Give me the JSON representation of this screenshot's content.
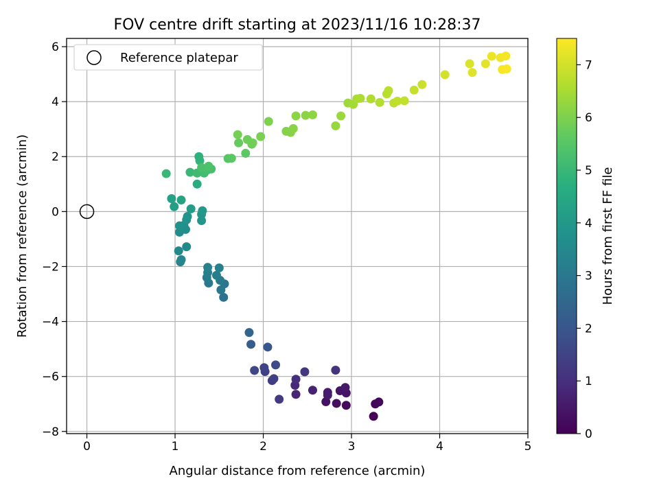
{
  "chart_data": {
    "type": "scatter",
    "title": "FOV centre drift starting at 2023/11/16 10:28:37",
    "xlabel": "Angular distance from reference (arcmin)",
    "ylabel": "Rotation from reference (arcmin)",
    "xlim": [
      -0.23,
      5.0
    ],
    "ylim": [
      -8.08,
      6.3
    ],
    "xticks": [
      0,
      1,
      2,
      3,
      4,
      5
    ],
    "yticks": [
      -8,
      -6,
      -4,
      -2,
      0,
      2,
      4,
      6
    ],
    "grid": true,
    "legend": {
      "position": "top-left",
      "entries": [
        "Reference platepar"
      ]
    },
    "reference_point": {
      "x": 0,
      "y": 0
    },
    "colorbar": {
      "label": "Hours from first FF file",
      "range": [
        0,
        7.5
      ],
      "ticks": [
        0,
        1,
        2,
        3,
        4,
        5,
        6,
        7
      ],
      "colormap": "viridis"
    },
    "points": [
      {
        "x": 3.25,
        "y": -7.45,
        "t": 0.05
      },
      {
        "x": 3.27,
        "y": -7.0,
        "t": 0.1
      },
      {
        "x": 3.31,
        "y": -6.93,
        "t": 0.15
      },
      {
        "x": 2.94,
        "y": -7.05,
        "t": 0.2
      },
      {
        "x": 2.83,
        "y": -6.98,
        "t": 0.3
      },
      {
        "x": 2.71,
        "y": -6.92,
        "t": 0.35
      },
      {
        "x": 2.94,
        "y": -6.6,
        "t": 0.4
      },
      {
        "x": 2.87,
        "y": -6.52,
        "t": 0.45
      },
      {
        "x": 2.93,
        "y": -6.4,
        "t": 0.5
      },
      {
        "x": 2.73,
        "y": -6.58,
        "t": 0.55
      },
      {
        "x": 2.73,
        "y": -6.68,
        "t": 0.6
      },
      {
        "x": 2.56,
        "y": -6.5,
        "t": 0.7
      },
      {
        "x": 2.37,
        "y": -6.65,
        "t": 0.8
      },
      {
        "x": 2.36,
        "y": -6.32,
        "t": 0.9
      },
      {
        "x": 2.37,
        "y": -6.1,
        "t": 1.0
      },
      {
        "x": 2.82,
        "y": -5.77,
        "t": 1.1
      },
      {
        "x": 2.47,
        "y": -5.83,
        "t": 1.2
      },
      {
        "x": 2.18,
        "y": -6.83,
        "t": 1.3
      },
      {
        "x": 2.1,
        "y": -6.15,
        "t": 1.35
      },
      {
        "x": 2.12,
        "y": -6.08,
        "t": 1.4
      },
      {
        "x": 2.02,
        "y": -5.82,
        "t": 1.45
      },
      {
        "x": 2.01,
        "y": -5.68,
        "t": 1.5
      },
      {
        "x": 1.9,
        "y": -5.78,
        "t": 1.6
      },
      {
        "x": 2.14,
        "y": -5.58,
        "t": 1.7
      },
      {
        "x": 2.05,
        "y": -4.93,
        "t": 2.0
      },
      {
        "x": 1.86,
        "y": -4.83,
        "t": 2.2
      },
      {
        "x": 1.84,
        "y": -4.4,
        "t": 2.4
      },
      {
        "x": 1.55,
        "y": -3.12,
        "t": 2.8
      },
      {
        "x": 1.56,
        "y": -2.63,
        "t": 2.9
      },
      {
        "x": 1.52,
        "y": -2.85,
        "t": 3.0
      },
      {
        "x": 1.38,
        "y": -2.6,
        "t": 3.0
      },
      {
        "x": 1.51,
        "y": -2.5,
        "t": 3.05
      },
      {
        "x": 1.36,
        "y": -2.4,
        "t": 3.1
      },
      {
        "x": 1.47,
        "y": -2.32,
        "t": 3.15
      },
      {
        "x": 1.37,
        "y": -2.22,
        "t": 3.2
      },
      {
        "x": 1.5,
        "y": -2.05,
        "t": 3.25
      },
      {
        "x": 1.37,
        "y": -2.03,
        "t": 3.3
      },
      {
        "x": 1.06,
        "y": -1.83,
        "t": 3.4
      },
      {
        "x": 1.07,
        "y": -1.75,
        "t": 3.45
      },
      {
        "x": 1.04,
        "y": -1.43,
        "t": 3.5
      },
      {
        "x": 1.13,
        "y": -1.28,
        "t": 3.55
      },
      {
        "x": 1.05,
        "y": -0.75,
        "t": 3.6
      },
      {
        "x": 1.12,
        "y": -0.65,
        "t": 3.65
      },
      {
        "x": 1.1,
        "y": -0.5,
        "t": 3.7
      },
      {
        "x": 1.05,
        "y": -0.52,
        "t": 3.75
      },
      {
        "x": 1.13,
        "y": -0.3,
        "t": 3.8
      },
      {
        "x": 1.14,
        "y": -0.18,
        "t": 3.85
      },
      {
        "x": 1.3,
        "y": -0.33,
        "t": 3.9
      },
      {
        "x": 1.3,
        "y": -0.1,
        "t": 3.95
      },
      {
        "x": 1.31,
        "y": 0.03,
        "t": 4.0
      },
      {
        "x": 1.18,
        "y": 0.1,
        "t": 4.1
      },
      {
        "x": 0.99,
        "y": 0.18,
        "t": 4.2
      },
      {
        "x": 0.96,
        "y": 0.47,
        "t": 4.3
      },
      {
        "x": 1.07,
        "y": 0.42,
        "t": 4.35
      },
      {
        "x": 1.25,
        "y": 1.0,
        "t": 4.6
      },
      {
        "x": 1.28,
        "y": 1.85,
        "t": 4.9
      },
      {
        "x": 1.27,
        "y": 2.0,
        "t": 4.8
      },
      {
        "x": 0.9,
        "y": 1.38,
        "t": 5.0
      },
      {
        "x": 1.17,
        "y": 1.43,
        "t": 5.0
      },
      {
        "x": 1.25,
        "y": 1.4,
        "t": 5.1
      },
      {
        "x": 1.33,
        "y": 1.4,
        "t": 5.15
      },
      {
        "x": 1.36,
        "y": 1.5,
        "t": 5.2
      },
      {
        "x": 1.41,
        "y": 1.55,
        "t": 5.25
      },
      {
        "x": 1.3,
        "y": 1.6,
        "t": 5.3
      },
      {
        "x": 1.38,
        "y": 1.65,
        "t": 5.35
      },
      {
        "x": 1.6,
        "y": 1.93,
        "t": 5.5
      },
      {
        "x": 1.64,
        "y": 1.94,
        "t": 5.55
      },
      {
        "x": 1.8,
        "y": 2.12,
        "t": 5.6
      },
      {
        "x": 1.72,
        "y": 2.5,
        "t": 5.7
      },
      {
        "x": 1.87,
        "y": 2.45,
        "t": 5.75
      },
      {
        "x": 1.82,
        "y": 2.62,
        "t": 5.8
      },
      {
        "x": 1.88,
        "y": 2.5,
        "t": 5.85
      },
      {
        "x": 1.71,
        "y": 2.8,
        "t": 5.9
      },
      {
        "x": 1.97,
        "y": 2.73,
        "t": 5.95
      },
      {
        "x": 2.06,
        "y": 3.28,
        "t": 6.0
      },
      {
        "x": 2.26,
        "y": 2.92,
        "t": 6.05
      },
      {
        "x": 2.31,
        "y": 2.88,
        "t": 6.1
      },
      {
        "x": 2.34,
        "y": 3.02,
        "t": 6.12
      },
      {
        "x": 2.37,
        "y": 3.48,
        "t": 6.15
      },
      {
        "x": 2.48,
        "y": 3.5,
        "t": 6.18
      },
      {
        "x": 2.56,
        "y": 3.52,
        "t": 6.2
      },
      {
        "x": 2.82,
        "y": 3.12,
        "t": 6.3
      },
      {
        "x": 2.88,
        "y": 3.48,
        "t": 6.35
      },
      {
        "x": 2.96,
        "y": 3.95,
        "t": 6.4
      },
      {
        "x": 3.02,
        "y": 3.9,
        "t": 6.45
      },
      {
        "x": 3.06,
        "y": 4.1,
        "t": 6.5
      },
      {
        "x": 3.1,
        "y": 4.12,
        "t": 6.55
      },
      {
        "x": 3.22,
        "y": 4.1,
        "t": 6.6
      },
      {
        "x": 3.32,
        "y": 3.97,
        "t": 6.65
      },
      {
        "x": 3.4,
        "y": 4.28,
        "t": 6.7
      },
      {
        "x": 3.42,
        "y": 4.4,
        "t": 6.72
      },
      {
        "x": 3.48,
        "y": 3.95,
        "t": 6.75
      },
      {
        "x": 3.52,
        "y": 4.02,
        "t": 6.78
      },
      {
        "x": 3.6,
        "y": 4.03,
        "t": 6.8
      },
      {
        "x": 3.71,
        "y": 4.42,
        "t": 6.85
      },
      {
        "x": 3.8,
        "y": 4.62,
        "t": 6.9
      },
      {
        "x": 4.06,
        "y": 4.98,
        "t": 7.0
      },
      {
        "x": 4.34,
        "y": 5.38,
        "t": 7.1
      },
      {
        "x": 4.37,
        "y": 5.06,
        "t": 7.15
      },
      {
        "x": 4.52,
        "y": 5.38,
        "t": 7.2
      },
      {
        "x": 4.59,
        "y": 5.65,
        "t": 7.3
      },
      {
        "x": 4.69,
        "y": 5.6,
        "t": 7.35
      },
      {
        "x": 4.75,
        "y": 5.66,
        "t": 7.4
      },
      {
        "x": 4.71,
        "y": 5.17,
        "t": 7.42
      },
      {
        "x": 4.76,
        "y": 5.19,
        "t": 7.45
      }
    ]
  }
}
